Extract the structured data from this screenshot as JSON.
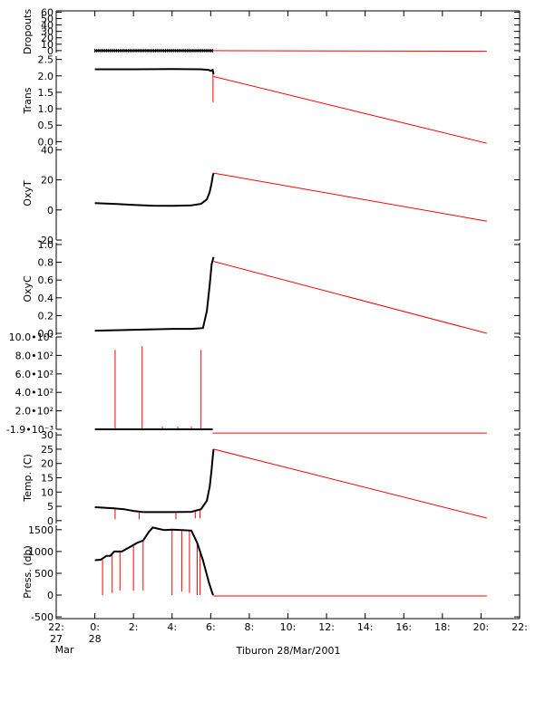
{
  "caption": "Tiburon 28/Mar/2001",
  "colors": {
    "raw": "#000000",
    "fit": "#ff0000",
    "axis": "#000000"
  },
  "x_axis": {
    "min_hours": -2.0,
    "max_hours": 22.0,
    "tick_hours": [
      -2,
      0,
      2,
      4,
      6,
      8,
      10,
      12,
      14,
      16,
      18,
      20,
      22
    ],
    "tick_labels": [
      "22:",
      "0:",
      "2:",
      "4:",
      "6:",
      "8:",
      "10:",
      "12:",
      "14:",
      "16:",
      "18:",
      "20:",
      "22:"
    ],
    "date_labels": [
      {
        "hour": -2,
        "line1": "27",
        "line2": "Mar"
      },
      {
        "hour": 0,
        "line1": "28",
        "line2": ""
      }
    ]
  },
  "chart_data": [
    {
      "type": "line",
      "ylabel": "Dropouts",
      "ylim": [
        -3,
        62
      ],
      "ticks": [
        0,
        10,
        20,
        30,
        40,
        50,
        60
      ],
      "tick_labels": [
        "0",
        "10",
        "20",
        "30",
        "40",
        "50",
        "60"
      ],
      "series": [
        {
          "color": "#000000",
          "style": "noisy",
          "x": [
            0.0,
            6.1
          ],
          "y": [
            0,
            0
          ]
        },
        {
          "color": "#ff0000",
          "x": [
            6.1,
            20.3
          ],
          "y": [
            0,
            -1
          ]
        }
      ]
    },
    {
      "type": "line",
      "ylabel": "Trans",
      "ylim": [
        -0.1,
        2.6
      ],
      "ticks": [
        0.0,
        0.5,
        1.0,
        1.5,
        2.0,
        2.5
      ],
      "tick_labels": [
        "0.0",
        "0.5",
        "1.0",
        "1.5",
        "2.0",
        "2.5"
      ],
      "series": [
        {
          "color": "#000000",
          "x": [
            0.0,
            2.0,
            4.0,
            5.5,
            5.9,
            6.0,
            6.1,
            6.15
          ],
          "y": [
            2.2,
            2.2,
            2.21,
            2.2,
            2.18,
            2.15,
            2.18,
            2.05
          ]
        },
        {
          "color": "#ff0000",
          "x": [
            6.15,
            20.3
          ],
          "y": [
            1.98,
            -0.05
          ]
        }
      ],
      "spikes": [
        {
          "x": 6.12,
          "y0": 2.1,
          "y1": 1.2
        }
      ]
    },
    {
      "type": "line",
      "ylabel": "OxyT",
      "ylim": [
        -20,
        42
      ],
      "ticks": [
        -20,
        0,
        20,
        40
      ],
      "tick_labels": [
        "-20",
        "0",
        "20",
        "40"
      ],
      "series": [
        {
          "color": "#000000",
          "x": [
            0.0,
            1.0,
            2.0,
            3.0,
            4.0,
            5.0,
            5.5,
            5.8,
            5.95,
            6.05,
            6.1,
            6.15
          ],
          "y": [
            4.5,
            4.0,
            3.3,
            2.8,
            2.7,
            3.0,
            4.0,
            7.0,
            12.0,
            18.0,
            22.0,
            24.5
          ]
        },
        {
          "color": "#ff0000",
          "x": [
            6.15,
            20.3
          ],
          "y": [
            24.5,
            -7.5
          ]
        }
      ]
    },
    {
      "type": "line",
      "ylabel": "OxyC",
      "ylim": [
        -0.02,
        1.02
      ],
      "ticks": [
        0.0,
        0.2,
        0.4,
        0.6,
        0.8,
        1.0
      ],
      "tick_labels": [
        "0.0",
        "0.2",
        "0.4",
        "0.6",
        "0.8",
        "1.0"
      ],
      "series": [
        {
          "color": "#000000",
          "x": [
            0.0,
            1.0,
            2.0,
            3.0,
            4.0,
            5.0,
            5.6,
            5.8,
            5.95,
            6.05,
            6.15
          ],
          "y": [
            0.03,
            0.035,
            0.04,
            0.045,
            0.05,
            0.05,
            0.06,
            0.25,
            0.55,
            0.78,
            0.86
          ]
        },
        {
          "color": "#ff0000",
          "x": [
            6.15,
            20.3
          ],
          "y": [
            0.81,
            0.0
          ]
        }
      ]
    },
    {
      "type": "line",
      "ylabel": "",
      "ylim": [
        -0.0019,
        1000
      ],
      "ticks": [
        -0.0019,
        200,
        400,
        600,
        800,
        1000
      ],
      "tick_labels": [
        "-1.9•10⁻³",
        "2.0•10²",
        "4.0•10²",
        "6.0•10²",
        "8.0•10²",
        "10.0•10²"
      ],
      "series": [
        {
          "color": "#000000",
          "x": [
            0.0,
            6.1
          ],
          "y": [
            0,
            0
          ]
        },
        {
          "color": "#ff0000",
          "x": [
            6.1,
            20.3
          ],
          "y": [
            -40,
            -40
          ]
        }
      ],
      "spikes": [
        {
          "x": 1.05,
          "y0": 0,
          "y1": 860
        },
        {
          "x": 2.45,
          "y0": 0,
          "y1": 900
        },
        {
          "x": 5.5,
          "y0": 0,
          "y1": 860
        },
        {
          "x": 3.5,
          "y0": 0,
          "y1": 30
        },
        {
          "x": 4.3,
          "y0": 0,
          "y1": 30
        },
        {
          "x": 5.0,
          "y0": 0,
          "y1": 30
        }
      ]
    },
    {
      "type": "line",
      "ylabel": "Temp. (C)",
      "ylim": [
        -1,
        31
      ],
      "ticks": [
        0,
        5,
        10,
        15,
        20,
        25,
        30
      ],
      "tick_labels": [
        "0",
        "5",
        "10",
        "15",
        "20",
        "25",
        "30"
      ],
      "series": [
        {
          "color": "#000000",
          "x": [
            0.0,
            0.5,
            1.0,
            1.5,
            2.0,
            2.5,
            3.0,
            4.0,
            5.0,
            5.5,
            5.8,
            5.95,
            6.05,
            6.1,
            6.15
          ],
          "y": [
            4.7,
            4.5,
            4.3,
            4.0,
            3.4,
            3.0,
            3.0,
            3.0,
            3.1,
            4.0,
            7.0,
            12.0,
            18.0,
            22.0,
            25.0
          ]
        },
        {
          "color": "#ff0000",
          "x": [
            6.15,
            20.3
          ],
          "y": [
            25.0,
            0.9
          ]
        }
      ],
      "spikes": [
        {
          "x": 1.05,
          "y0": 4.3,
          "y1": 0.5
        },
        {
          "x": 2.3,
          "y0": 3.2,
          "y1": 0.5
        },
        {
          "x": 4.2,
          "y0": 3.0,
          "y1": 0.5
        },
        {
          "x": 5.2,
          "y0": 3.5,
          "y1": 0.8
        },
        {
          "x": 5.45,
          "y0": 4.0,
          "y1": 0.8
        }
      ]
    },
    {
      "type": "line",
      "ylabel": "Press. (db)",
      "ylim": [
        -540,
        1600
      ],
      "ticks": [
        -500,
        0,
        500,
        1000,
        1500
      ],
      "tick_labels": [
        "-500",
        "0",
        "500",
        "1000",
        "1500"
      ],
      "series": [
        {
          "color": "#000000",
          "x": [
            0.0,
            0.3,
            0.6,
            0.8,
            1.0,
            1.4,
            1.6,
            1.8,
            2.2,
            2.5,
            2.8,
            3.0,
            3.3,
            3.6,
            4.0,
            4.5,
            5.0,
            5.3,
            5.6,
            5.9,
            6.1,
            6.15
          ],
          "y": [
            800,
            810,
            900,
            900,
            1000,
            1000,
            1050,
            1100,
            1200,
            1250,
            1450,
            1550,
            1520,
            1490,
            1500,
            1490,
            1480,
            1200,
            800,
            300,
            20,
            0
          ]
        },
        {
          "color": "#ff0000",
          "x": [
            6.15,
            20.3
          ],
          "y": [
            -20,
            -20
          ]
        }
      ],
      "spikes": [
        {
          "x": 0.4,
          "y0": 850,
          "y1": 0
        },
        {
          "x": 0.9,
          "y0": 950,
          "y1": 50
        },
        {
          "x": 1.3,
          "y0": 1000,
          "y1": 100
        },
        {
          "x": 2.0,
          "y0": 1150,
          "y1": 100
        },
        {
          "x": 2.5,
          "y0": 1250,
          "y1": 100
        },
        {
          "x": 4.0,
          "y0": 1500,
          "y1": 0
        },
        {
          "x": 4.5,
          "y0": 1490,
          "y1": 80
        },
        {
          "x": 4.9,
          "y0": 1480,
          "y1": 50
        },
        {
          "x": 5.3,
          "y0": 1200,
          "y1": 0
        },
        {
          "x": 5.45,
          "y0": 1000,
          "y1": 0
        }
      ]
    }
  ]
}
